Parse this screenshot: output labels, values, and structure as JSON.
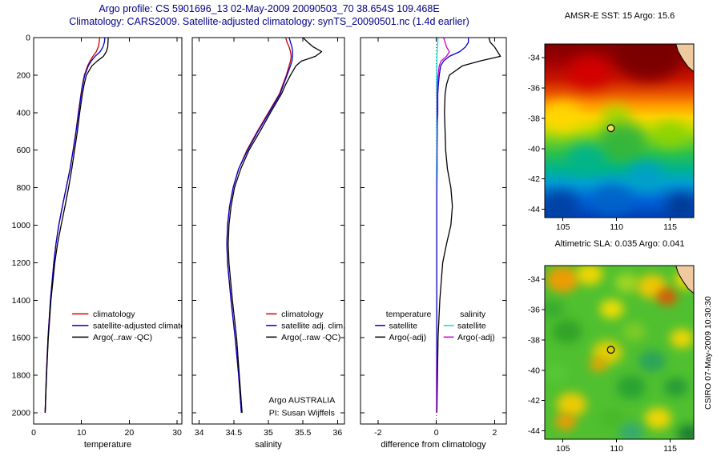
{
  "header": {
    "line1": "Argo profile: CS 5901696_13 02-May-2009 20090503_70 38.654S 109.468E",
    "line2": "Climatology: CARS2009. Satellite-adjusted climatology: synTS_20090501.nc (1.4d earlier)"
  },
  "watermark": "CSIRO 07-May-2009 10:30:30",
  "colors": {
    "title_text": "#00008b",
    "climatology": "#cc0000",
    "satellite_adjusted": "#0000cc",
    "argo": "#000000",
    "salinity_satellite": "#00dce0",
    "salinity_argo": "#cc00cc"
  },
  "chart_data": [
    {
      "type": "line",
      "name": "temperature-profile",
      "xlabel": "temperature",
      "xlim": [
        0,
        31
      ],
      "ylim": [
        2060,
        0
      ],
      "xticks": [
        0,
        10,
        20,
        30
      ],
      "yticks": [
        0,
        200,
        400,
        600,
        800,
        1000,
        1200,
        1400,
        1600,
        1800,
        2000
      ],
      "y_tick_labels": true,
      "depths": [
        0,
        25,
        50,
        75,
        100,
        125,
        150,
        200,
        250,
        300,
        400,
        500,
        600,
        700,
        800,
        900,
        1000,
        1100,
        1200,
        1400,
        1600,
        1800,
        2000
      ],
      "series": [
        {
          "name": "climatology",
          "color": "#cc0000",
          "values": [
            13.8,
            13.7,
            13.5,
            13.1,
            12.4,
            11.8,
            11.3,
            10.6,
            10.2,
            9.9,
            9.35,
            8.85,
            8.25,
            7.6,
            6.8,
            6.0,
            5.25,
            4.65,
            4.2,
            3.5,
            3.0,
            2.65,
            2.4
          ]
        },
        {
          "name": "satellite-adjusted climatology",
          "color": "#0000cc",
          "values": [
            14.9,
            14.8,
            14.5,
            13.9,
            12.85,
            12.05,
            11.45,
            10.7,
            10.27,
            9.95,
            9.4,
            8.88,
            8.27,
            7.62,
            6.82,
            6.02,
            5.27,
            4.67,
            4.22,
            3.52,
            3.02,
            2.66,
            2.4
          ]
        },
        {
          "name": "Argo(..raw -QC)",
          "color": "#000000",
          "values": [
            15.6,
            15.55,
            15.5,
            15.2,
            14.6,
            13.3,
            12.2,
            11.05,
            10.55,
            10.2,
            9.63,
            9.15,
            8.57,
            7.98,
            7.3,
            6.55,
            5.75,
            5.0,
            4.42,
            3.62,
            3.06,
            2.69,
            2.42
          ]
        }
      ],
      "legend": [
        {
          "label": "climatology",
          "color": "#cc0000"
        },
        {
          "label": "satellite-adjusted climatology",
          "color": "#0000cc"
        },
        {
          "label": "Argo(..raw -QC)",
          "color": "#000000"
        }
      ]
    },
    {
      "type": "line",
      "name": "salinity-profile",
      "xlabel": "salinity",
      "xlim": [
        33.9,
        36.1
      ],
      "ylim": [
        2060,
        0
      ],
      "xticks": [
        34,
        34.5,
        35,
        35.5,
        36
      ],
      "yticks": [
        0,
        200,
        400,
        600,
        800,
        1000,
        1200,
        1400,
        1600,
        1800,
        2000
      ],
      "y_tick_labels": false,
      "depths": [
        0,
        25,
        50,
        75,
        100,
        125,
        150,
        200,
        250,
        300,
        400,
        500,
        600,
        700,
        800,
        900,
        1000,
        1100,
        1200,
        1400,
        1600,
        1800,
        2000
      ],
      "series": [
        {
          "name": "climatology",
          "color": "#cc0000",
          "values": [
            35.25,
            35.27,
            35.3,
            35.32,
            35.33,
            35.32,
            35.3,
            35.26,
            35.21,
            35.16,
            35.0,
            34.84,
            34.69,
            34.57,
            34.49,
            34.44,
            34.41,
            34.4,
            34.41,
            34.46,
            34.52,
            34.57,
            34.61
          ]
        },
        {
          "name": "satellite adj. clim.",
          "color": "#0000cc",
          "values": [
            35.3,
            35.32,
            35.34,
            35.35,
            35.35,
            35.34,
            35.32,
            35.27,
            35.22,
            35.17,
            35.01,
            34.85,
            34.7,
            34.57,
            34.49,
            34.44,
            34.41,
            34.4,
            34.41,
            34.46,
            34.52,
            34.57,
            34.61
          ]
        },
        {
          "name": "Argo(..raw -QC)",
          "color": "#000000",
          "values": [
            35.5,
            35.57,
            35.65,
            35.77,
            35.68,
            35.48,
            35.4,
            35.32,
            35.25,
            35.19,
            35.03,
            34.88,
            34.72,
            34.6,
            34.51,
            34.46,
            34.43,
            34.42,
            34.43,
            34.48,
            34.54,
            34.58,
            34.62
          ]
        }
      ],
      "legend": [
        {
          "label": "climatology",
          "color": "#cc0000"
        },
        {
          "label": "satellite adj. clim.",
          "color": "#0000cc"
        },
        {
          "label": "Argo(..raw -QC)",
          "color": "#000000"
        }
      ],
      "annotation": {
        "line1": "Argo AUSTRALIA",
        "line2": "PI: Susan Wijffels"
      }
    },
    {
      "type": "line",
      "name": "difference-from-climatology",
      "xlabel": "difference from climatology",
      "xlim": [
        -2.6,
        2.4
      ],
      "ylim": [
        2060,
        0
      ],
      "xticks": [
        -2,
        0,
        2
      ],
      "yticks": [
        0,
        200,
        400,
        600,
        800,
        1000,
        1200,
        1400,
        1600,
        1800,
        2000
      ],
      "y_tick_labels": false,
      "zero_line": true,
      "depths": [
        0,
        25,
        50,
        75,
        100,
        125,
        150,
        200,
        250,
        300,
        400,
        500,
        600,
        700,
        800,
        900,
        1000,
        1100,
        1200,
        1400,
        1600,
        1800,
        2000
      ],
      "series": [
        {
          "name": "temperature satellite",
          "color": "#0000cc",
          "values": [
            1.1,
            1.1,
            1.0,
            0.8,
            0.45,
            0.25,
            0.15,
            0.1,
            0.07,
            0.05,
            0.05,
            0.03,
            0.02,
            0.02,
            0.02,
            0.02,
            0.02,
            0.02,
            0.02,
            0.02,
            0.02,
            0.01,
            0.0
          ]
        },
        {
          "name": "temperature Argo(-adj)",
          "color": "#000000",
          "values": [
            1.8,
            1.85,
            2.0,
            2.1,
            2.2,
            1.5,
            0.9,
            0.45,
            0.35,
            0.3,
            0.28,
            0.3,
            0.32,
            0.38,
            0.5,
            0.55,
            0.5,
            0.35,
            0.22,
            0.12,
            0.06,
            0.04,
            0.02
          ]
        },
        {
          "name": "salinity satellite",
          "color": "#00dce0",
          "values": [
            0.05,
            0.05,
            0.04,
            0.03,
            0.02,
            0.02,
            0.02,
            0.01,
            0.01,
            0.01,
            0.01,
            0.01,
            0.01,
            0.0,
            0.0,
            0.0,
            0.0,
            0.0,
            0.0,
            0.0,
            0.0,
            0.0,
            0.0
          ]
        },
        {
          "name": "salinity Argo(-adj)",
          "color": "#cc00cc",
          "values": [
            0.25,
            0.3,
            0.35,
            0.45,
            0.35,
            0.16,
            0.1,
            0.06,
            0.04,
            0.03,
            0.03,
            0.04,
            0.03,
            0.03,
            0.02,
            0.02,
            0.02,
            0.02,
            0.02,
            0.02,
            0.02,
            0.01,
            0.01
          ]
        }
      ],
      "legend_columns": [
        {
          "header": "temperature",
          "items": [
            {
              "label": "satellite",
              "color": "#0000cc"
            },
            {
              "label": "Argo(-adj)",
              "color": "#000000"
            }
          ]
        },
        {
          "header": "salinity",
          "items": [
            {
              "label": "satellite",
              "color": "#00dce0"
            },
            {
              "label": "Argo(-adj)",
              "color": "#cc00cc"
            }
          ]
        }
      ]
    },
    {
      "type": "heatmap",
      "name": "amsre-sst-map",
      "title": "AMSR-E SST: 15 Argo: 15.6",
      "palette": "sst",
      "xlim": [
        103.3,
        117.2
      ],
      "ylim": [
        -44.55,
        -33.1
      ],
      "xticks": [
        105,
        110,
        115
      ],
      "yticks": [
        -34,
        -36,
        -38,
        -40,
        -42,
        -44
      ],
      "marker": {
        "lon": 109.468,
        "lat": -38.654
      }
    },
    {
      "type": "heatmap",
      "name": "altimetric-sla-map",
      "title": "Altimetric SLA: 0.035 Argo: 0.041",
      "palette": "sla",
      "xlim": [
        103.3,
        117.2
      ],
      "ylim": [
        -44.55,
        -33.1
      ],
      "xticks": [
        105,
        110,
        115
      ],
      "yticks": [
        -34,
        -36,
        -38,
        -40,
        -42,
        -44
      ],
      "marker": {
        "lon": 109.468,
        "lat": -38.654
      }
    }
  ]
}
